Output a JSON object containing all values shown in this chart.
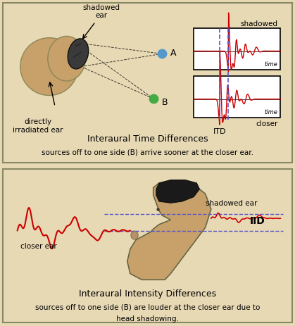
{
  "bg_color": "#e8d9b5",
  "border_color": "#888866",
  "title1": "Interaural Time Differences",
  "subtitle1": "sources off to one side (B) arrive sooner at the closer ear.",
  "title2": "Interaural Intensity Differences",
  "subtitle2_line1": "sources off to one side (B) are louder at the closer ear due to",
  "subtitle2_line2": "head shadowing.",
  "red_color": "#cc0000",
  "blue_dashed_color": "#5555cc",
  "dot_A_color": "#5599cc",
  "dot_B_color": "#44aa44",
  "head_color": "#c8a06a",
  "head_edge": "#888855",
  "ear_dark_color": "#3a3a3a",
  "hair_color": "#1a1a1a",
  "label_shadowed_ear": "shadowed\near",
  "label_direct_ear": "directly\nirradiated ear",
  "label_A": "A",
  "label_B": "B",
  "label_shadowed": "shadowed",
  "label_closer": "closer",
  "label_ITD": "ITD",
  "label_time": "time",
  "label_IID": "IID",
  "label_shadowed_ear2": "shadowed ear",
  "label_closer_ear2": "closer ear",
  "white_box": "#ffffff"
}
